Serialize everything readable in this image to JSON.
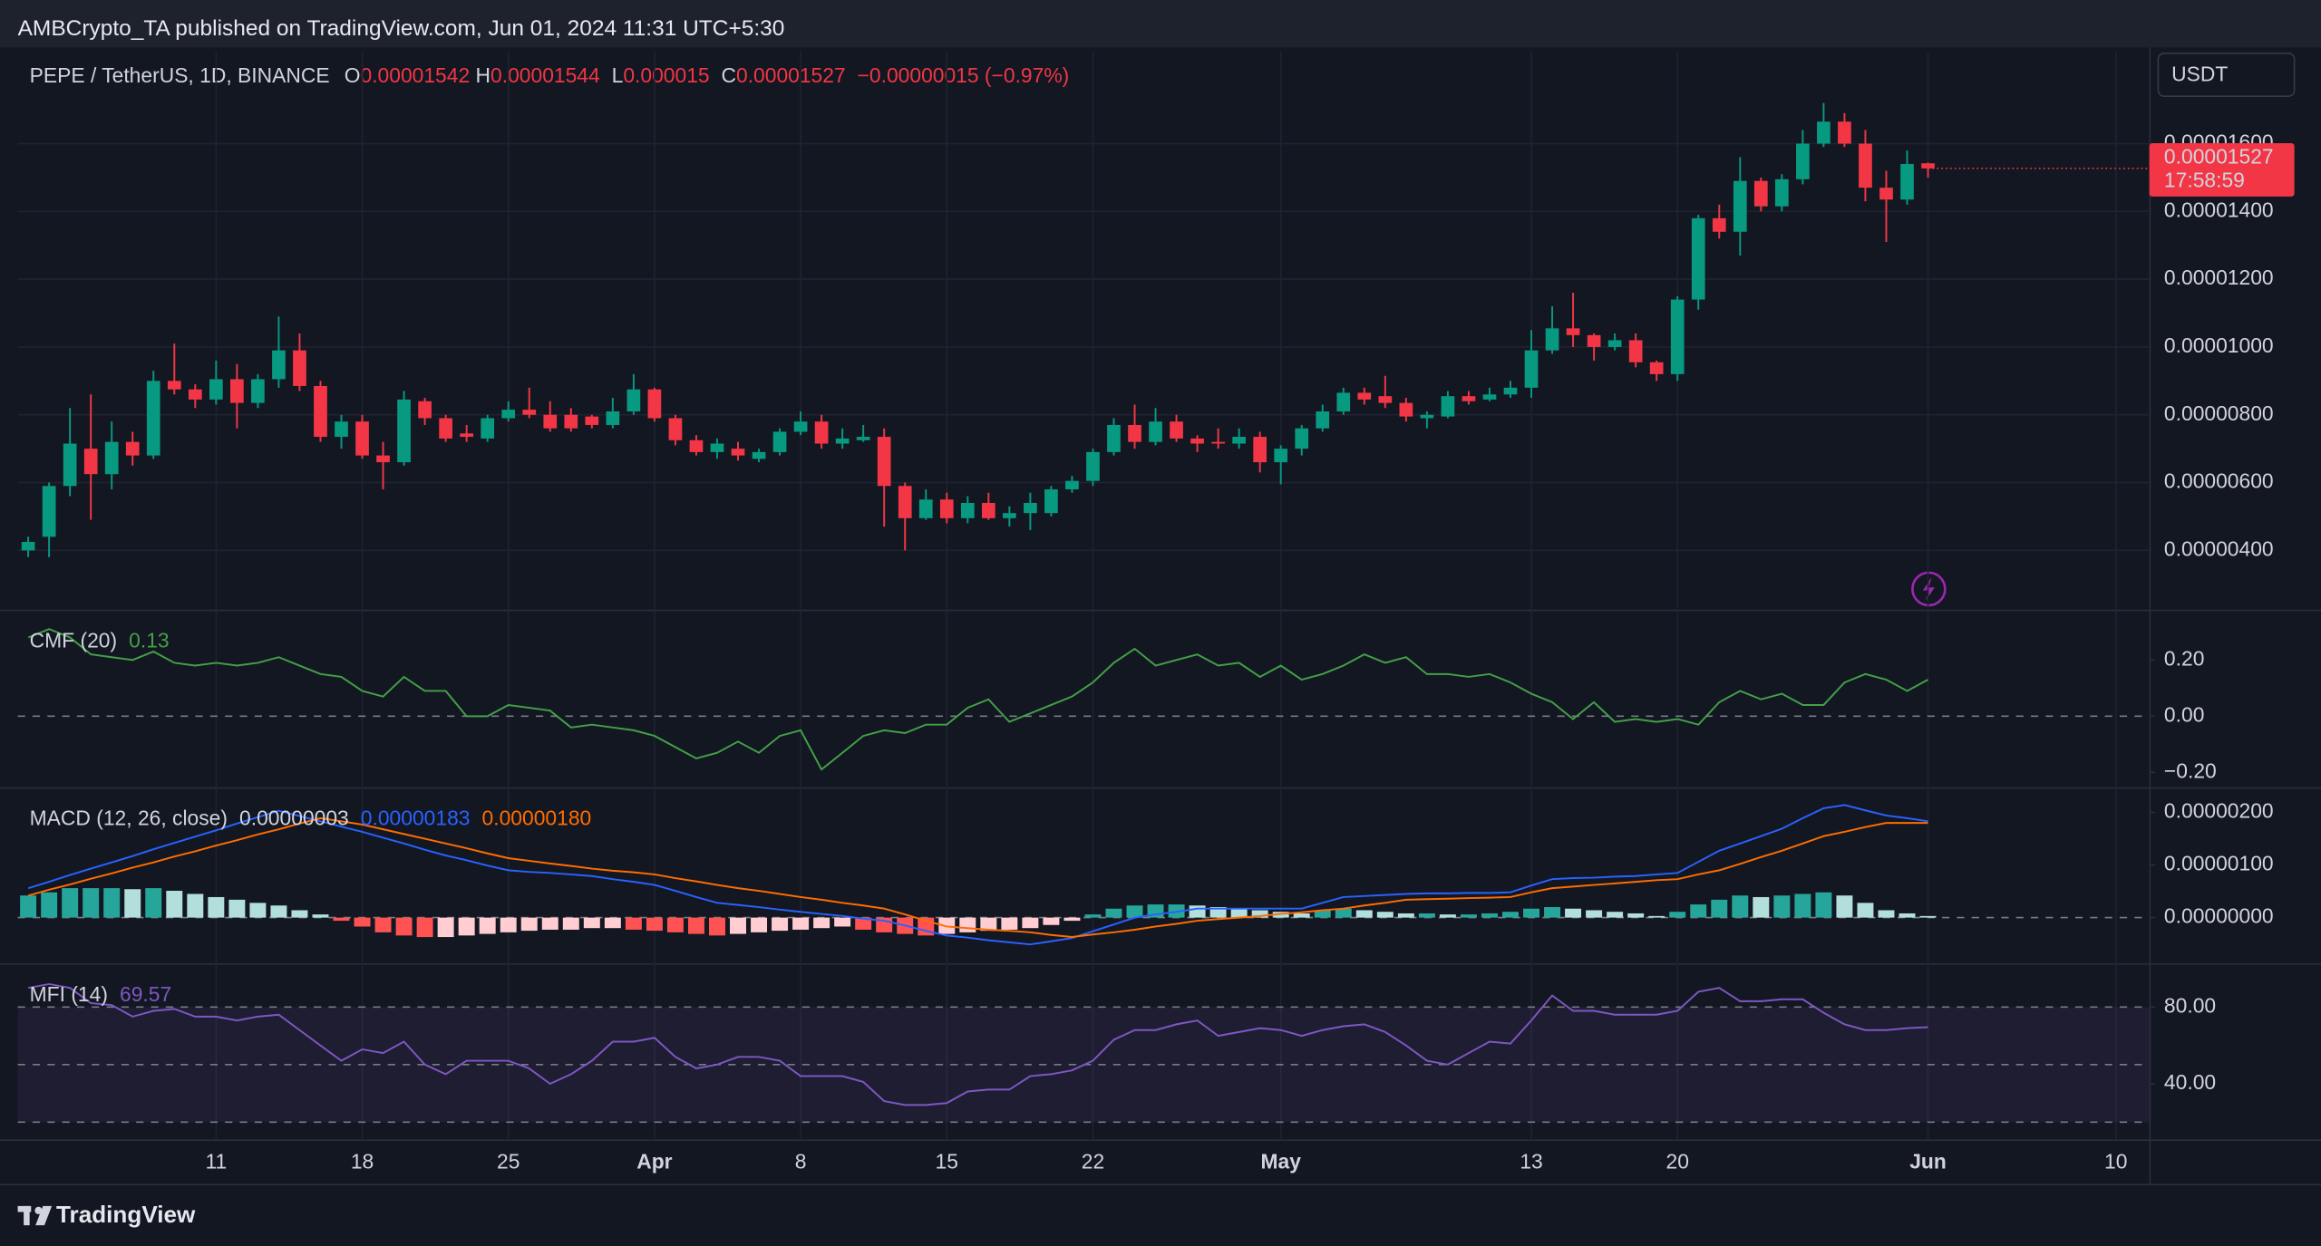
{
  "header": {
    "publisher": "AMBCrypto_TA published on TradingView.com, Jun 01, 2024 11:31 UTC+5:30",
    "currency": "USDT",
    "countdown": "17:58:59",
    "brand": "TradingView"
  },
  "chart_data": [
    {
      "type": "candlestick",
      "title": "PEPE / TetherUS, 1D, BINANCE",
      "ohlc_labels": [
        "O",
        "H",
        "L",
        "C"
      ],
      "change_label": "−0.00000015 (−0.97%)",
      "up_color": "#089981",
      "down_color": "#f23645",
      "grid": true,
      "open": [
        4e-06,
        4.4e-06,
        5.9e-06,
        7e-06,
        6.25e-06,
        7.2e-06,
        6.8e-06,
        9e-06,
        8.75e-06,
        8.45e-06,
        9.05e-06,
        8.35e-06,
        9.05e-06,
        9.9e-06,
        8.85e-06,
        7.35e-06,
        7.8e-06,
        6.8e-06,
        6.6e-06,
        8.4e-06,
        7.9e-06,
        7.45e-06,
        7.3e-06,
        7.9e-06,
        8.15e-06,
        8e-06,
        8e-06,
        7.95e-06,
        7.7e-06,
        8.1e-06,
        8.75e-06,
        7.9e-06,
        7.25e-06,
        6.9e-06,
        7e-06,
        6.7e-06,
        6.9e-06,
        7.5e-06,
        7.8e-06,
        7.15e-06,
        7.25e-06,
        7.35e-06,
        5.9e-06,
        4.95e-06,
        5.5e-06,
        4.95e-06,
        5.4e-06,
        4.95e-06,
        5.1e-06,
        5.1e-06,
        5.8e-06,
        6.05e-06,
        6.9e-06,
        7.7e-06,
        7.2e-06,
        7.8e-06,
        7.3e-06,
        7.2e-06,
        7.15e-06,
        7.35e-06,
        6.6e-06,
        7e-06,
        7.6e-06,
        8.1e-06,
        8.65e-06,
        8.55e-06,
        8.35e-06,
        7.9e-06,
        7.95e-06,
        8.55e-06,
        8.45e-06,
        8.6e-06,
        8.8e-06,
        9.9e-06,
        1.055e-05,
        1.035e-05,
        1e-05,
        1.02e-05,
        9.55e-06,
        9.2e-06,
        1.14e-05,
        1.38e-05,
        1.34e-05,
        1.49e-05,
        1.415e-05,
        1.495e-05,
        1.6e-05,
        1.665e-05,
        1.6e-05,
        1.47e-05,
        1.435e-05,
        1.542e-05
      ],
      "high": [
        4.4e-06,
        6e-06,
        8.2e-06,
        8.6e-06,
        7.8e-06,
        7.5e-06,
        9.3e-06,
        1.01e-05,
        8.9e-06,
        9.6e-06,
        9.5e-06,
        9.2e-06,
        1.09e-05,
        1.04e-05,
        9e-06,
        8e-06,
        8e-06,
        7.2e-06,
        8.7e-06,
        8.5e-06,
        8e-06,
        7.7e-06,
        8e-06,
        8.4e-06,
        8.8e-06,
        8.4e-06,
        8.2e-06,
        8e-06,
        8.5e-06,
        9.2e-06,
        8.8e-06,
        8e-06,
        7.4e-06,
        7.3e-06,
        7.2e-06,
        7e-06,
        7.6e-06,
        8.1e-06,
        8e-06,
        7.6e-06,
        7.7e-06,
        7.6e-06,
        6e-06,
        5.8e-06,
        5.7e-06,
        5.6e-06,
        5.7e-06,
        5.3e-06,
        5.7e-06,
        5.9e-06,
        6.2e-06,
        7e-06,
        7.9e-06,
        8.3e-06,
        8.2e-06,
        8e-06,
        7.4e-06,
        7.6e-06,
        7.6e-06,
        7.5e-06,
        7.1e-06,
        7.7e-06,
        8.3e-06,
        8.8e-06,
        8.8e-06,
        9.15e-06,
        8.5e-06,
        8.1e-06,
        8.7e-06,
        8.7e-06,
        8.8e-06,
        9e-06,
        1.05e-05,
        1.12e-05,
        1.16e-05,
        1.04e-05,
        1.04e-05,
        1.04e-05,
        9.6e-06,
        1.15e-05,
        1.39e-05,
        1.42e-05,
        1.56e-05,
        1.5e-05,
        1.51e-05,
        1.64e-05,
        1.72e-05,
        1.69e-05,
        1.64e-05,
        1.52e-05,
        1.58e-05,
        1.544e-05
      ],
      "low": [
        3.8e-06,
        3.8e-06,
        5.6e-06,
        4.9e-06,
        5.8e-06,
        6.5e-06,
        6.7e-06,
        8.6e-06,
        8.2e-06,
        8.3e-06,
        7.6e-06,
        8.2e-06,
        8.8e-06,
        8.7e-06,
        7.2e-06,
        7e-06,
        6.7e-06,
        5.8e-06,
        6.5e-06,
        7.7e-06,
        7.2e-06,
        7.2e-06,
        7.2e-06,
        7.8e-06,
        7.9e-06,
        7.5e-06,
        7.5e-06,
        7.6e-06,
        7.6e-06,
        8e-06,
        7.8e-06,
        7.1e-06,
        6.8e-06,
        6.7e-06,
        6.65e-06,
        6.6e-06,
        6.8e-06,
        7.4e-06,
        7e-06,
        7e-06,
        7.2e-06,
        4.7e-06,
        4e-06,
        4.9e-06,
        4.8e-06,
        4.8e-06,
        4.9e-06,
        4.7e-06,
        4.6e-06,
        5e-06,
        5.7e-06,
        5.9e-06,
        6.8e-06,
        7e-06,
        7.1e-06,
        7.2e-06,
        6.9e-06,
        7e-06,
        7e-06,
        6.3e-06,
        5.95e-06,
        6.8e-06,
        7.5e-06,
        8e-06,
        8.3e-06,
        8.2e-06,
        7.8e-06,
        7.6e-06,
        7.9e-06,
        8.3e-06,
        8.4e-06,
        8.5e-06,
        8.5e-06,
        9.8e-06,
        1e-05,
        9.6e-06,
        9.9e-06,
        9.4e-06,
        9e-06,
        9e-06,
        1.11e-05,
        1.32e-05,
        1.27e-05,
        1.4e-05,
        1.4e-05,
        1.48e-05,
        1.59e-05,
        1.59e-05,
        1.43e-05,
        1.31e-05,
        1.42e-05,
        1.5e-05
      ],
      "close": [
        4.25e-06,
        5.9e-06,
        7.15e-06,
        6.25e-06,
        7.2e-06,
        6.8e-06,
        9e-06,
        8.75e-06,
        8.45e-06,
        9.05e-06,
        8.35e-06,
        9.05e-06,
        9.9e-06,
        8.85e-06,
        7.35e-06,
        7.8e-06,
        6.8e-06,
        6.6e-06,
        8.45e-06,
        7.9e-06,
        7.3e-06,
        7.35e-06,
        7.9e-06,
        8.15e-06,
        8e-06,
        7.6e-06,
        7.6e-06,
        7.7e-06,
        8.1e-06,
        8.75e-06,
        7.9e-06,
        7.25e-06,
        6.9e-06,
        7.15e-06,
        6.8e-06,
        6.9e-06,
        7.5e-06,
        7.8e-06,
        7.15e-06,
        7.3e-06,
        7.35e-06,
        5.9e-06,
        4.95e-06,
        5.5e-06,
        4.95e-06,
        5.4e-06,
        4.95e-06,
        5.1e-06,
        5.4e-06,
        5.8e-06,
        6.05e-06,
        6.9e-06,
        7.7e-06,
        7.2e-06,
        7.8e-06,
        7.3e-06,
        7.15e-06,
        7.15e-06,
        7.35e-06,
        6.6e-06,
        7e-06,
        7.6e-06,
        8.1e-06,
        8.65e-06,
        8.45e-06,
        8.35e-06,
        7.95e-06,
        8e-06,
        8.55e-06,
        8.4e-06,
        8.6e-06,
        8.8e-06,
        9.9e-06,
        1.055e-05,
        1.035e-05,
        1e-05,
        1.02e-05,
        9.55e-06,
        9.2e-06,
        1.14e-05,
        1.38e-05,
        1.34e-05,
        1.49e-05,
        1.415e-05,
        1.495e-05,
        1.6e-05,
        1.665e-05,
        1.6e-05,
        1.47e-05,
        1.435e-05,
        1.54e-05,
        1.527e-05
      ],
      "ylim": [
        2.25e-06,
        1.871e-05
      ],
      "yticks": [
        {
          "value": 4e-06,
          "label": "0.00000400"
        },
        {
          "value": 6e-06,
          "label": "0.00000600"
        },
        {
          "value": 8e-06,
          "label": "0.00000800"
        },
        {
          "value": 1e-05,
          "label": "0.00001000"
        },
        {
          "value": 1.2e-05,
          "label": "0.00001200"
        },
        {
          "value": 1.4e-05,
          "label": "0.00001400"
        },
        {
          "value": 1.6e-05,
          "label": "0.00001600"
        }
      ],
      "xlim": [
        -0.5,
        101.6
      ],
      "xticks": [
        {
          "value": 9,
          "label": "11"
        },
        {
          "value": 16,
          "label": "18"
        },
        {
          "value": 23,
          "label": "25"
        },
        {
          "value": 30,
          "label": "Apr"
        },
        {
          "value": 37,
          "label": "8"
        },
        {
          "value": 44,
          "label": "15"
        },
        {
          "value": 51,
          "label": "22"
        },
        {
          "value": 60,
          "label": "May"
        },
        {
          "value": 72,
          "label": "13"
        },
        {
          "value": 79,
          "label": "20"
        },
        {
          "value": 91,
          "label": "Jun"
        },
        {
          "value": 100,
          "label": "10"
        }
      ]
    },
    {
      "type": "line",
      "title": "CMF (20)",
      "color": "#43a047",
      "zero_line": true,
      "values": [
        0.28,
        0.31,
        0.28,
        0.22,
        0.21,
        0.2,
        0.23,
        0.19,
        0.18,
        0.19,
        0.18,
        0.19,
        0.21,
        0.18,
        0.15,
        0.14,
        0.09,
        0.07,
        0.14,
        0.09,
        0.09,
        0.0,
        0.0,
        0.04,
        0.03,
        0.02,
        -0.04,
        -0.03,
        -0.04,
        -0.05,
        -0.07,
        -0.11,
        -0.15,
        -0.13,
        -0.09,
        -0.13,
        -0.07,
        -0.05,
        -0.19,
        -0.13,
        -0.07,
        -0.05,
        -0.06,
        -0.03,
        -0.03,
        0.03,
        0.06,
        -0.02,
        0.01,
        0.04,
        0.07,
        0.12,
        0.19,
        0.24,
        0.18,
        0.2,
        0.22,
        0.18,
        0.19,
        0.14,
        0.18,
        0.13,
        0.15,
        0.18,
        0.22,
        0.19,
        0.21,
        0.15,
        0.15,
        0.14,
        0.15,
        0.12,
        0.08,
        0.05,
        -0.01,
        0.05,
        -0.02,
        -0.01,
        -0.02,
        -0.01,
        -0.03,
        0.05,
        0.09,
        0.06,
        0.08,
        0.04,
        0.04,
        0.12,
        0.15,
        0.13,
        0.09,
        0.13
      ],
      "ylim": [
        -0.253,
        0.374
      ],
      "yticks": [
        {
          "value": 0.2,
          "label": "0.20"
        },
        {
          "value": 0,
          "label": "0.00"
        },
        {
          "value": -0.2,
          "label": "−0.20"
        }
      ]
    },
    {
      "type": "macd",
      "title": "MACD (12, 26, close)",
      "zero_line": true,
      "histogram": {
        "colors": [
          "#26a69a",
          "#b2dfdb",
          "#ffcdd2",
          "#ff5252"
        ],
        "last_label": "0.00000003",
        "values": [
          4.2e-07,
          4.8e-07,
          5.6e-07,
          5.6e-07,
          5.6e-07,
          5.4e-07,
          5.6e-07,
          5.1e-07,
          4.5e-07,
          3.9e-07,
          3.4e-07,
          2.8e-07,
          2.3e-07,
          1.4e-07,
          6e-08,
          -6e-08,
          -1.7e-07,
          -2.8e-07,
          -3.4e-07,
          -3.7e-07,
          -3.7e-07,
          -3.4e-07,
          -3.1e-07,
          -2.8e-07,
          -2.5e-07,
          -2.3e-07,
          -2.3e-07,
          -2e-07,
          -2e-07,
          -2.3e-07,
          -2.5e-07,
          -2.8e-07,
          -3.1e-07,
          -3.4e-07,
          -3.1e-07,
          -2.8e-07,
          -2.5e-07,
          -2.3e-07,
          -2e-07,
          -1.7e-07,
          -2.3e-07,
          -2.8e-07,
          -3.1e-07,
          -3.4e-07,
          -3.1e-07,
          -2.8e-07,
          -2.5e-07,
          -2.3e-07,
          -2e-07,
          -1.4e-07,
          -6e-08,
          6e-08,
          1.7e-07,
          2.3e-07,
          2.5e-07,
          2.5e-07,
          2.3e-07,
          2e-07,
          1.7e-07,
          1.4e-07,
          1.1e-07,
          8e-08,
          1.4e-07,
          1.7e-07,
          1.4e-07,
          1.1e-07,
          8e-08,
          8e-08,
          6e-08,
          6e-08,
          8e-08,
          1.1e-07,
          1.7e-07,
          2e-07,
          1.7e-07,
          1.4e-07,
          1.1e-07,
          8e-08,
          3e-08,
          1.1e-07,
          2.5e-07,
          3.4e-07,
          4.2e-07,
          3.9e-07,
          4.2e-07,
          4.5e-07,
          4.8e-07,
          4.2e-07,
          2.8e-07,
          1.4e-07,
          8e-08,
          3e-08
        ]
      },
      "series": [
        {
          "color": "#2962ff",
          "last_label": "0.00000183",
          "values": [
            5.6e-07,
            6.8e-07,
            8.1e-07,
            9.3e-07,
            1.05e-06,
            1.17e-06,
            1.3e-06,
            1.42e-06,
            1.54e-06,
            1.66e-06,
            1.79e-06,
            1.91e-06,
            2.03e-06,
            1.93e-06,
            1.83e-06,
            1.73e-06,
            1.63e-06,
            1.52e-06,
            1.41e-06,
            1.29e-06,
            1.18e-06,
            1.09e-06,
            9.9e-07,
            9e-07,
            8.7e-07,
            8.5e-07,
            8.2e-07,
            7.9e-07,
            7.3e-07,
            6.8e-07,
            6.2e-07,
            5.1e-07,
            3.9e-07,
            2.8e-07,
            2.4e-07,
            2e-07,
            1.5e-07,
            1.1e-07,
            7e-08,
            3e-08,
            -2e-08,
            -6e-08,
            -1.5e-07,
            -2.5e-07,
            -3.4e-07,
            -3.8e-07,
            -4.3e-07,
            -4.7e-07,
            -5.1e-07,
            -4.5e-07,
            -3.9e-07,
            -2.6e-07,
            -1.3e-07,
            0,
            6e-08,
            1.1e-07,
            1.7e-07,
            1.7e-07,
            1.7e-07,
            1.7e-07,
            1.7e-07,
            1.7e-07,
            2.8e-07,
            3.9e-07,
            4.1e-07,
            4.3e-07,
            4.5e-07,
            4.6e-07,
            4.6e-07,
            4.7e-07,
            4.7e-07,
            4.8e-07,
            6.1e-07,
            7.3e-07,
            7.5e-07,
            7.6e-07,
            7.8e-07,
            7.9e-07,
            8.2e-07,
            8.5e-07,
            1.06e-06,
            1.27e-06,
            1.41e-06,
            1.55e-06,
            1.69e-06,
            1.89e-06,
            2.08e-06,
            2.14e-06,
            2.04e-06,
            1.94e-06,
            1.89e-06,
            1.83e-06
          ]
        },
        {
          "color": "#ff6d00",
          "last_label": "0.00000180",
          "values": [
            4.2e-07,
            5.3e-07,
            6.3e-07,
            7.4e-07,
            8.4e-07,
            9.5e-07,
            1.05e-06,
            1.16e-06,
            1.26e-06,
            1.37e-06,
            1.47e-06,
            1.58e-06,
            1.68e-06,
            1.79e-06,
            1.89e-06,
            1.83e-06,
            1.77e-06,
            1.68e-06,
            1.59e-06,
            1.5e-06,
            1.41e-06,
            1.32e-06,
            1.22e-06,
            1.13e-06,
            1.08e-06,
            1.03e-06,
            9.8e-07,
            9.3e-07,
            8.9e-07,
            8.6e-07,
            8.2e-07,
            7.5e-07,
            6.9e-07,
            6.2e-07,
            5.6e-07,
            5.1e-07,
            4.5e-07,
            3.9e-07,
            3.4e-07,
            2.8e-07,
            2.3e-07,
            1.7e-07,
            6e-08,
            -6e-08,
            -1.7e-07,
            -2e-07,
            -2.3e-07,
            -2.5e-07,
            -2.8e-07,
            -3.3e-07,
            -3.7e-07,
            -3.2e-07,
            -2.8e-07,
            -2.3e-07,
            -1.7e-07,
            -1.2e-07,
            -6e-08,
            -3e-08,
            0,
            3e-08,
            7e-08,
            1e-07,
            1.4e-07,
            1.7e-07,
            2.3e-07,
            2.8e-07,
            3.4e-07,
            3.5e-07,
            3.6e-07,
            3.7e-07,
            3.8e-07,
            3.9e-07,
            4.8e-07,
            5.6e-07,
            5.9e-07,
            6.2e-07,
            6.5e-07,
            6.8e-07,
            7.1e-07,
            7.3e-07,
            8.2e-07,
            9e-07,
            1.02e-06,
            1.15e-06,
            1.27e-06,
            1.41e-06,
            1.55e-06,
            1.63e-06,
            1.72e-06,
            1.8e-06,
            1.8e-06,
            1.8e-06
          ]
        }
      ],
      "ylim": [
        -8.7e-07,
        2.45e-06
      ],
      "yticks": [
        {
          "value": 2e-06,
          "label": "0.00000200"
        },
        {
          "value": 1e-06,
          "label": "0.00000100"
        },
        {
          "value": 0,
          "label": "0.00000000"
        }
      ]
    },
    {
      "type": "line",
      "title": "MFI (14)",
      "color": "#7e57c2",
      "bands": [
        80,
        50,
        20
      ],
      "band_fill": "rgba(126,87,194,0.10)",
      "values": [
        90,
        92,
        90,
        82,
        81,
        75,
        78,
        79,
        75,
        75,
        73,
        75,
        76,
        68,
        60,
        52,
        58,
        56,
        62,
        50,
        45,
        52,
        52,
        52,
        48,
        40,
        45,
        52,
        62,
        62,
        64,
        54,
        48,
        50,
        54,
        54,
        52,
        44,
        44,
        44,
        41,
        31,
        29,
        29,
        30,
        36,
        37,
        37,
        44,
        45,
        47,
        52,
        63,
        68,
        68,
        71,
        73,
        65,
        67,
        69,
        68,
        65,
        68,
        70,
        71,
        67,
        60,
        52,
        50,
        56,
        62,
        61,
        73,
        86,
        78,
        78,
        76,
        76,
        76,
        78,
        88,
        90,
        83,
        83,
        84,
        84,
        77,
        71,
        68,
        68,
        69,
        69.57
      ],
      "ylim": [
        11,
        102
      ],
      "yticks": [
        {
          "value": 80,
          "label": "80.00"
        },
        {
          "value": 40,
          "label": "40.00"
        }
      ]
    }
  ]
}
